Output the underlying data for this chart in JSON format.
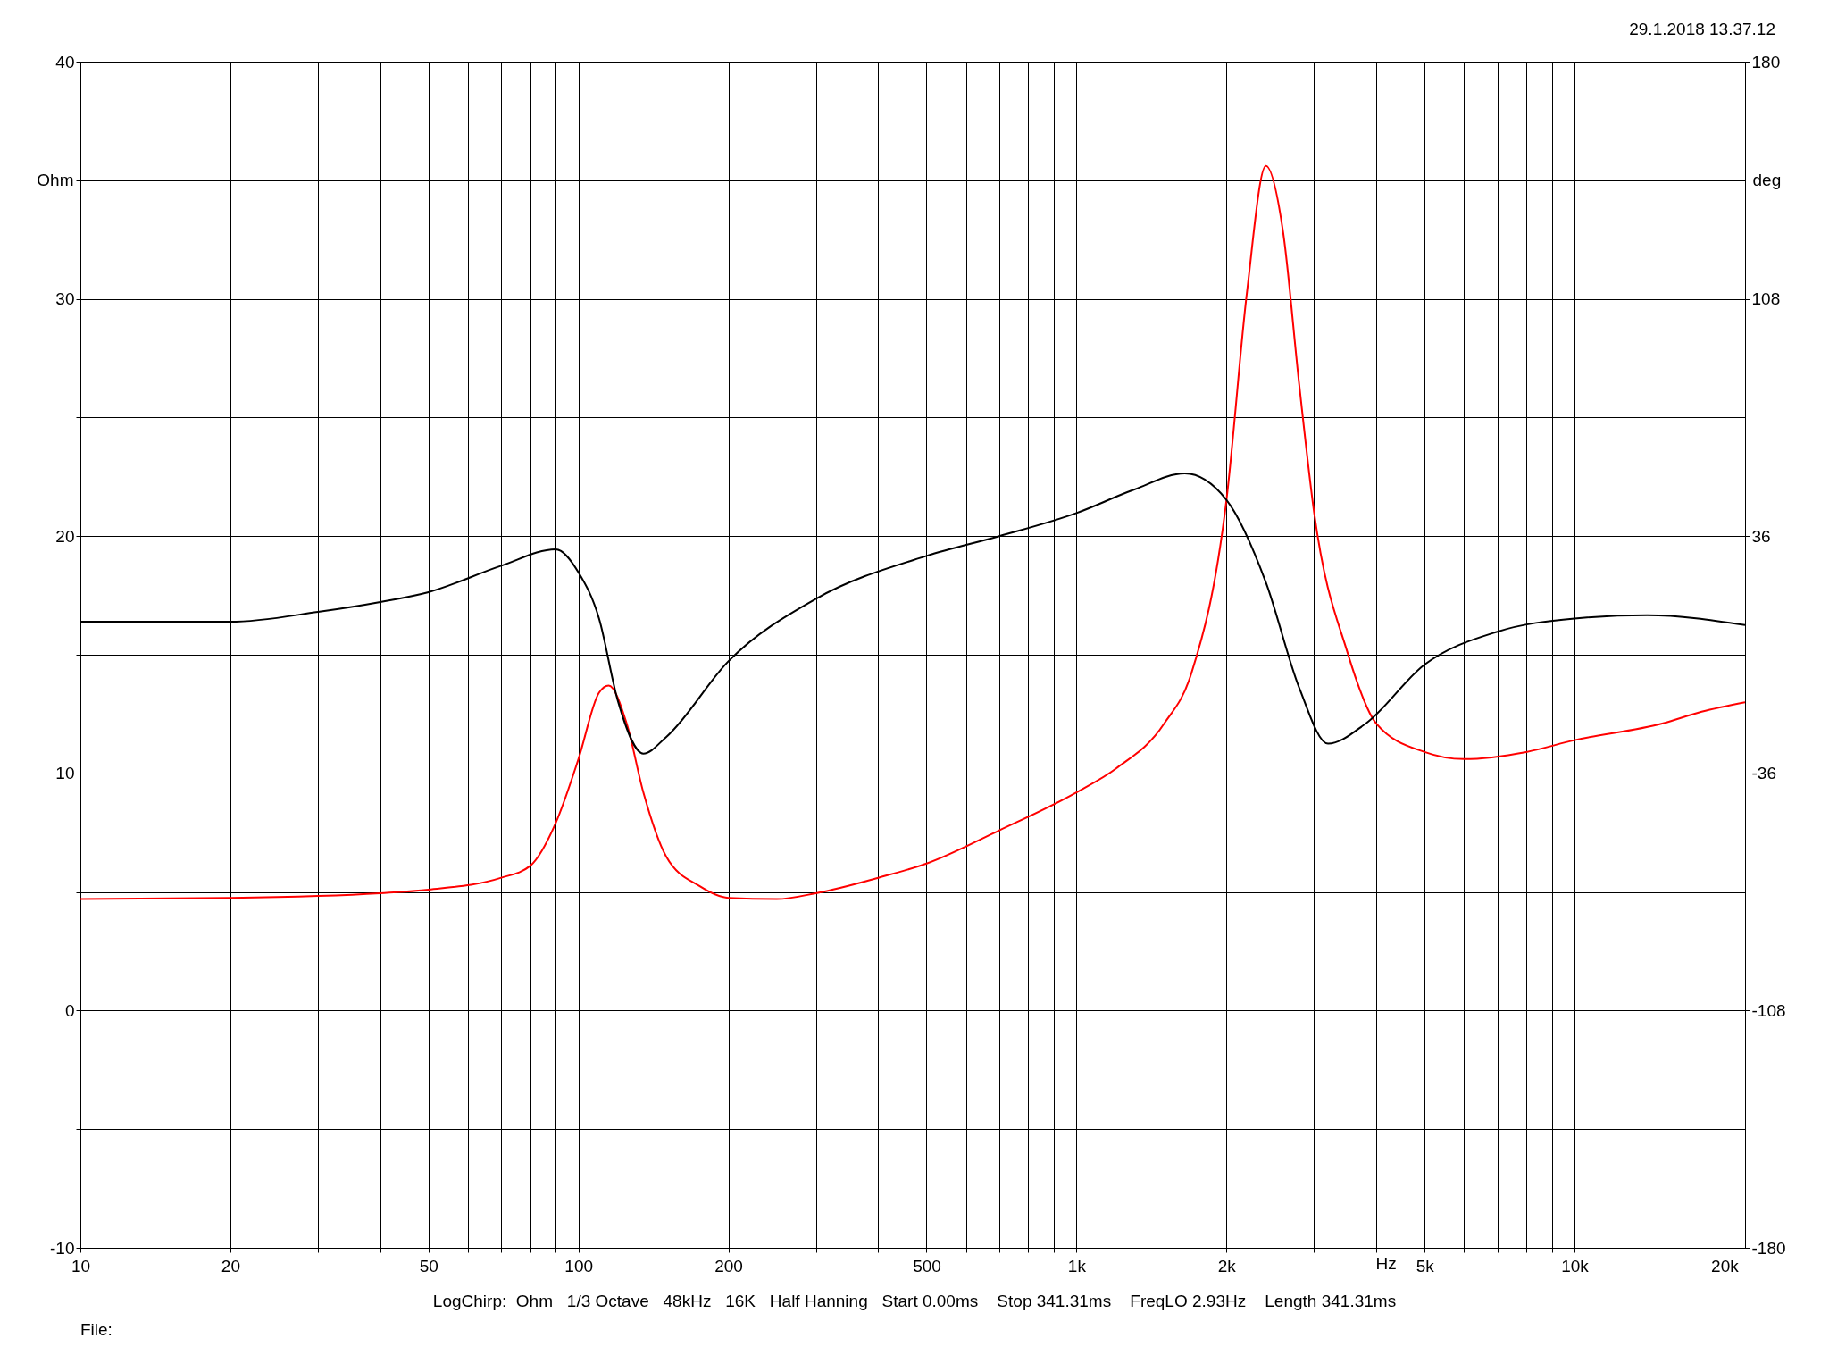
{
  "chart_data": {
    "type": "line",
    "xlabel": "Hz",
    "ylabel": "Ohm",
    "y2label": "deg",
    "log": "x",
    "grid": true,
    "annotations": [
      "29.1.2018 13.37.12",
      "LogChirp:  Ohm   1/3 Octave   48kHz   16K   Half Hanning   Start 0.00ms    Stop 341.31ms    FreqLO 2.93Hz    Length 341.31ms",
      "File:"
    ],
    "xlim": [
      10,
      22000
    ],
    "ylim": [
      -10,
      40
    ],
    "y2lim": [
      -180,
      180
    ],
    "xticks": [
      10,
      20,
      {
        "value": 30,
        "label": null
      },
      {
        "value": 40,
        "label": null
      },
      50,
      {
        "value": 60,
        "label": null
      },
      {
        "value": 70,
        "label": null
      },
      {
        "value": 80,
        "label": null
      },
      {
        "value": 90,
        "label": null
      },
      100,
      200,
      {
        "value": 300,
        "label": null
      },
      {
        "value": 400,
        "label": null
      },
      500,
      {
        "value": 600,
        "label": null
      },
      {
        "value": 700,
        "label": null
      },
      {
        "value": 800,
        "label": null
      },
      {
        "value": 900,
        "label": null
      },
      {
        "value": 1000,
        "label": "1k"
      },
      {
        "value": 2000,
        "label": "2k"
      },
      {
        "value": 3000,
        "label": null
      },
      {
        "value": 4000,
        "label": null
      },
      {
        "value": 5000,
        "label": "5k"
      },
      {
        "value": 6000,
        "label": null
      },
      {
        "value": 7000,
        "label": null
      },
      {
        "value": 8000,
        "label": null
      },
      {
        "value": 9000,
        "label": null
      },
      {
        "value": 10000,
        "label": "10k"
      },
      {
        "value": 20000,
        "label": "20k"
      }
    ],
    "yticks": [
      -10,
      {
        "value": -5,
        "label": null
      },
      0,
      {
        "value": 5,
        "label": null
      },
      10,
      {
        "value": 15,
        "label": null
      },
      20,
      {
        "value": 25,
        "label": null
      },
      30,
      {
        "value": 35,
        "label": null
      },
      40
    ],
    "y2ticks": [
      -180,
      -108,
      -36,
      36,
      108,
      180
    ],
    "series": [
      {
        "color": "#ff0000",
        "x": [
          10,
          20,
          40,
          50,
          70,
          80,
          90,
          100,
          110,
          115,
          125,
          135,
          150,
          175,
          200,
          250,
          300,
          400,
          500,
          700,
          1000,
          1200,
          1500,
          1700,
          2000,
          2200,
          2400,
          2600,
          2800,
          3000,
          3500,
          4000,
          5000,
          6000,
          8000,
          10000,
          15000,
          18000,
          22000
        ],
        "values": [
          4.7,
          4.75,
          4.95,
          5.1,
          5.6,
          6.1,
          7.9,
          10.6,
          13.4,
          13.7,
          12.1,
          9.2,
          6.5,
          5.25,
          4.75,
          4.7,
          4.95,
          5.6,
          6.2,
          7.6,
          9.2,
          10.2,
          12.1,
          14.2,
          21.5,
          30.3,
          35.6,
          32.8,
          26.4,
          21,
          15.1,
          12.1,
          10.9,
          10.6,
          10.9,
          11.4,
          12.1,
          12.6,
          13
        ]
      },
      {
        "color": "#000000",
        "axis": "y2",
        "x": [
          10,
          20,
          30,
          40,
          50,
          70,
          90,
          100,
          110,
          120,
          135,
          150,
          200,
          300,
          500,
          700,
          1000,
          1300,
          1650,
          2000,
          2400,
          2800,
          3200,
          3800,
          5000,
          7000,
          10000,
          14000,
          22000
        ],
        "values": [
          10,
          10,
          13,
          16,
          19,
          27,
          32,
          25,
          11,
          -14,
          -30,
          -25,
          -2,
          17,
          30,
          36,
          43,
          50,
          55,
          47,
          22,
          -10,
          -27,
          -21,
          -3,
          7,
          11,
          12,
          9
        ]
      }
    ]
  }
}
